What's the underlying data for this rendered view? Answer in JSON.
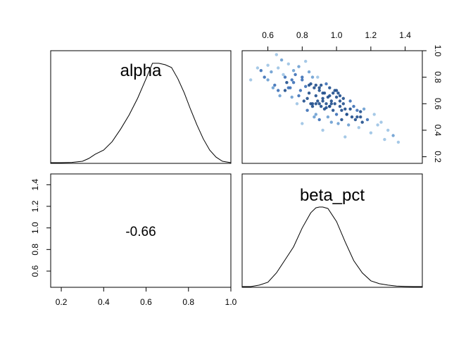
{
  "chart_data": {
    "type": "pairs",
    "variables": [
      "alpha",
      "beta_pct"
    ],
    "correlation": "-0.66",
    "axes": {
      "alpha": {
        "range": [
          0.15,
          1.0
        ],
        "ticks": [
          0.2,
          0.4,
          0.6,
          0.8,
          1.0
        ],
        "tick_labels": [
          "0.2",
          "0.4",
          "0.6",
          "0.8",
          "1.0"
        ]
      },
      "beta_pct": {
        "range": [
          0.45,
          1.5
        ],
        "ticks": [
          0.6,
          0.8,
          1.0,
          1.2,
          1.4
        ],
        "tick_labels": [
          "0.6",
          "0.8",
          "1.0",
          "1.2",
          "1.4"
        ]
      },
      "scatter_y": {
        "range": [
          0.15,
          1.0
        ],
        "ticks": [
          0.2,
          0.4,
          0.6,
          0.8,
          1.0
        ],
        "tick_labels": [
          "0.2",
          "0.4",
          "0.6",
          "0.8",
          "1.0"
        ]
      }
    },
    "density_alpha": {
      "x": [
        0.15,
        0.2,
        0.25,
        0.3,
        0.33,
        0.36,
        0.4,
        0.44,
        0.48,
        0.52,
        0.56,
        0.6,
        0.63,
        0.66,
        0.69,
        0.72,
        0.75,
        0.78,
        0.81,
        0.84,
        0.87,
        0.9,
        0.93,
        0.96,
        1.0
      ],
      "y": [
        0.0,
        0.0,
        0.002,
        0.01,
        0.03,
        0.06,
        0.09,
        0.15,
        0.24,
        0.34,
        0.46,
        0.6,
        0.71,
        0.71,
        0.7,
        0.68,
        0.6,
        0.5,
        0.38,
        0.27,
        0.17,
        0.09,
        0.04,
        0.01,
        0.0
      ]
    },
    "density_beta": {
      "x": [
        0.45,
        0.5,
        0.55,
        0.6,
        0.65,
        0.7,
        0.75,
        0.8,
        0.85,
        0.88,
        0.9,
        0.92,
        0.95,
        1.0,
        1.05,
        1.1,
        1.15,
        1.2,
        1.25,
        1.3,
        1.35,
        1.4,
        1.45,
        1.5
      ],
      "y": [
        0.0,
        0.0,
        0.02,
        0.06,
        0.19,
        0.37,
        0.55,
        0.81,
        1.02,
        1.09,
        1.1,
        1.1,
        1.08,
        0.9,
        0.62,
        0.36,
        0.19,
        0.08,
        0.04,
        0.02,
        0.008,
        0.003,
        0.0,
        0.0
      ]
    },
    "scatter": {
      "x": [
        0.5,
        0.54,
        0.56,
        0.58,
        0.6,
        0.62,
        0.63,
        0.65,
        0.66,
        0.67,
        0.68,
        0.7,
        0.71,
        0.72,
        0.73,
        0.74,
        0.75,
        0.76,
        0.77,
        0.78,
        0.79,
        0.8,
        0.8,
        0.81,
        0.82,
        0.82,
        0.83,
        0.84,
        0.84,
        0.85,
        0.85,
        0.86,
        0.86,
        0.87,
        0.87,
        0.88,
        0.88,
        0.89,
        0.89,
        0.9,
        0.9,
        0.91,
        0.91,
        0.92,
        0.92,
        0.93,
        0.93,
        0.94,
        0.94,
        0.95,
        0.95,
        0.96,
        0.96,
        0.97,
        0.97,
        0.98,
        0.98,
        0.99,
        0.99,
        1.0,
        1.0,
        1.01,
        1.01,
        1.02,
        1.02,
        1.03,
        1.03,
        1.04,
        1.05,
        1.05,
        1.06,
        1.07,
        1.08,
        1.09,
        1.1,
        1.11,
        1.12,
        1.13,
        1.14,
        1.15,
        1.16,
        1.18,
        1.2,
        1.22,
        1.24,
        1.26,
        1.28,
        1.3,
        1.33,
        1.36,
        0.64,
        0.7,
        0.74,
        0.78,
        0.88,
        0.92,
        0.96,
        1.0,
        1.04,
        1.08,
        0.69,
        0.75,
        0.83,
        0.9,
        0.97,
        1.06,
        1.12,
        0.6,
        0.66,
        0.72,
        0.86,
        0.94,
        1.02,
        1.14,
        0.8,
        0.84,
        0.88,
        0.92,
        0.96,
        0.9
      ],
      "y": [
        0.78,
        0.87,
        0.85,
        0.8,
        0.89,
        0.84,
        0.72,
        0.97,
        0.87,
        0.66,
        0.93,
        0.8,
        0.76,
        0.9,
        0.72,
        0.65,
        0.85,
        0.82,
        0.6,
        0.88,
        0.7,
        0.78,
        0.45,
        0.62,
        0.92,
        0.73,
        0.55,
        0.84,
        0.68,
        0.75,
        0.6,
        0.8,
        0.58,
        0.72,
        0.5,
        0.66,
        0.52,
        0.8,
        0.62,
        0.7,
        0.48,
        0.58,
        0.74,
        0.62,
        0.4,
        0.68,
        0.56,
        0.75,
        0.6,
        0.5,
        0.65,
        0.58,
        0.72,
        0.62,
        0.46,
        0.68,
        0.55,
        0.6,
        0.7,
        0.52,
        0.65,
        0.45,
        0.68,
        0.58,
        0.62,
        0.55,
        0.48,
        0.64,
        0.35,
        0.56,
        0.52,
        0.44,
        0.62,
        0.5,
        0.58,
        0.48,
        0.55,
        0.42,
        0.5,
        0.46,
        0.56,
        0.48,
        0.38,
        0.52,
        0.44,
        0.46,
        0.33,
        0.4,
        0.36,
        0.31,
        0.74,
        0.7,
        0.78,
        0.66,
        0.74,
        0.64,
        0.66,
        0.7,
        0.6,
        0.56,
        0.82,
        0.76,
        0.64,
        0.6,
        0.6,
        0.52,
        0.5,
        0.78,
        0.7,
        0.72,
        0.6,
        0.57,
        0.66,
        0.54,
        0.8,
        0.74,
        0.6,
        0.68,
        0.58,
        0.72
      ]
    }
  }
}
